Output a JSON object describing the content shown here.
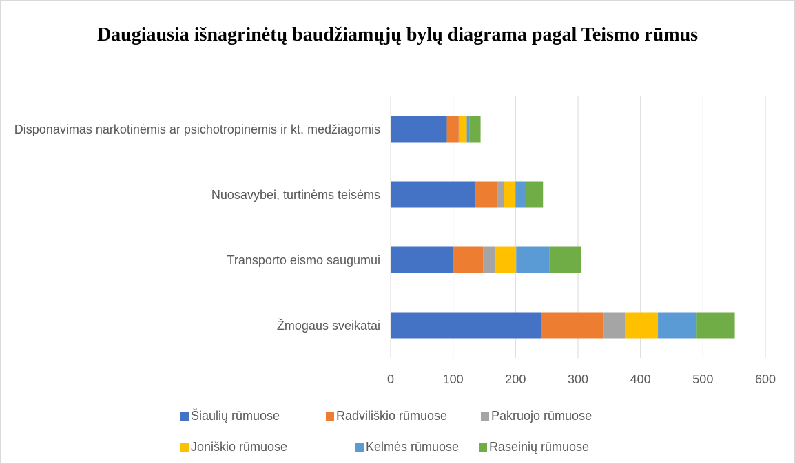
{
  "chart_data": {
    "type": "stacked_barh",
    "title": "Daugiausia išnagrinėtų baudžiamųjų bylų diagrama pagal Teismo rūmus",
    "categories": [
      "Disponavimas narkotinėmis ar psichotropinėmis ir kt. medžiagomis",
      "Nuosavybei, turtinėms teisėms",
      "Transporto eismo saugumui",
      "Žmogaus sveikatai"
    ],
    "series": [
      {
        "name": "Šiaulių rūmuose",
        "color": "#4472c4",
        "values": [
          90,
          136,
          100,
          241
        ]
      },
      {
        "name": "Radviliškio rūmuose",
        "color": "#ed7d31",
        "values": [
          19,
          35,
          48,
          100
        ]
      },
      {
        "name": "Pakruojo rūmuose",
        "color": "#a5a5a5",
        "values": [
          1,
          11,
          20,
          34
        ]
      },
      {
        "name": "Joniškio rūmuose",
        "color": "#ffc000",
        "values": [
          12,
          18,
          33,
          53
        ]
      },
      {
        "name": "Kelmės rūmuose",
        "color": "#5b9bd5",
        "values": [
          4,
          17,
          53,
          62
        ]
      },
      {
        "name": "Raseinių rūmuose",
        "color": "#70ad47",
        "values": [
          18,
          27,
          51,
          61
        ]
      }
    ],
    "xlim": [
      0,
      600
    ],
    "xticks": [
      0,
      100,
      200,
      300,
      400,
      500,
      600
    ],
    "grid": true,
    "legend": "bottom"
  }
}
